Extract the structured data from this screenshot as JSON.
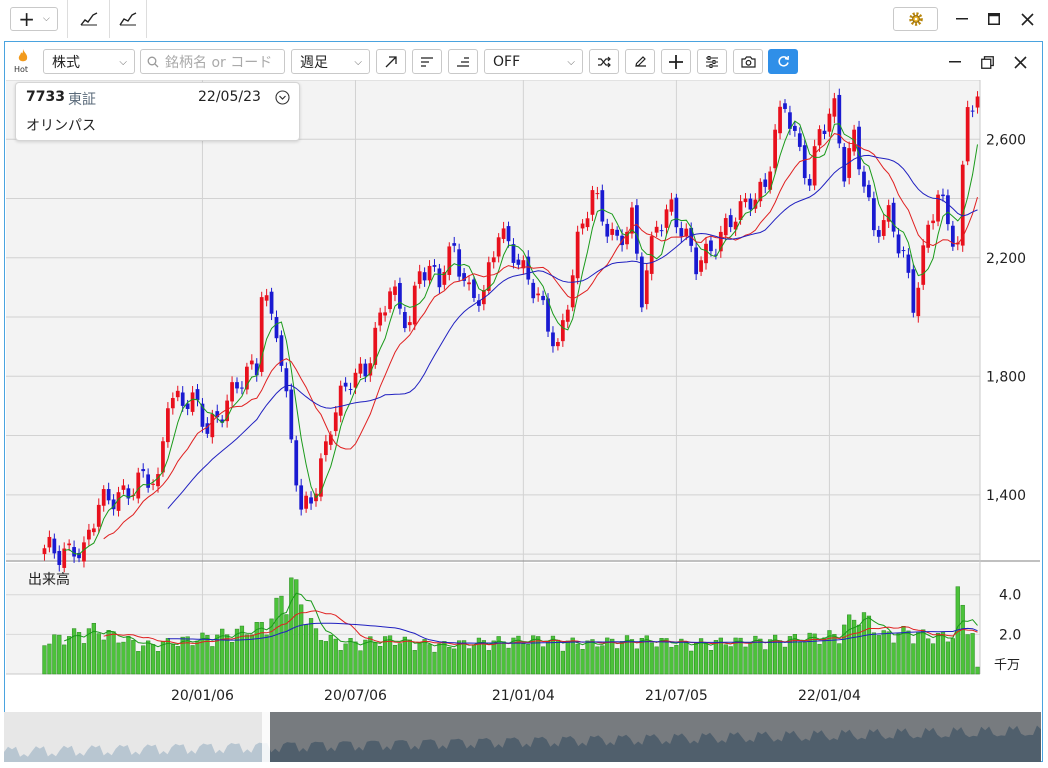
{
  "window": {
    "add_label": "+",
    "tool_icons": [
      "line-chart-icon",
      "line-chart-alt-icon"
    ],
    "settings_icon": "gear-icon"
  },
  "toolbar": {
    "hot_label": "Hot",
    "type_select": "株式",
    "search_placeholder": "銘柄名 or コード",
    "period_select": "週足",
    "indicator_select": "OFF",
    "refresh_color": "#2f8fe8"
  },
  "stock": {
    "code": "7733",
    "market": "東証",
    "date": "22/05/23",
    "name": "オリンパス"
  },
  "volume_panel": {
    "title": "出来高",
    "unit": "千万"
  },
  "chart_data": {
    "type": "candlestick",
    "price_axis": {
      "ticks": [
        1400,
        1800,
        2200,
        2600
      ],
      "labels": [
        "1,400",
        "1,800",
        "2,200",
        "2,600"
      ],
      "range": [
        1180,
        2800
      ]
    },
    "volume_axis": {
      "ticks": [
        2.0,
        4.0
      ],
      "labels": [
        "2.0",
        "4.0"
      ],
      "range": [
        0,
        5.6
      ],
      "unit": "千万"
    },
    "time_axis": [
      "20/01/06",
      "20/07/06",
      "21/01/04",
      "21/07/05",
      "22/01/04"
    ],
    "up_color": "#e8101d",
    "down_color": "#1a1ad1",
    "ma_colors": {
      "short": "#1a9a1a",
      "mid": "#e02020",
      "long": "#2020c0"
    },
    "keypoints": [
      [
        0,
        1200
      ],
      [
        3,
        1195
      ],
      [
        6,
        1240
      ],
      [
        8,
        1210
      ],
      [
        11,
        1350
      ],
      [
        15,
        1415
      ],
      [
        20,
        1440
      ],
      [
        23,
        1430
      ],
      [
        25,
        1750
      ],
      [
        30,
        1700
      ],
      [
        33,
        1620
      ],
      [
        37,
        1730
      ],
      [
        41,
        1790
      ],
      [
        43,
        1830
      ],
      [
        44,
        2100
      ],
      [
        47,
        1980
      ],
      [
        49,
        1700
      ],
      [
        52,
        1320
      ],
      [
        55,
        1450
      ],
      [
        58,
        1640
      ],
      [
        62,
        1780
      ],
      [
        65,
        1840
      ],
      [
        67,
        1950
      ],
      [
        70,
        2080
      ],
      [
        72,
        2010
      ],
      [
        74,
        1990
      ],
      [
        76,
        2190
      ],
      [
        80,
        2110
      ],
      [
        83,
        2230
      ],
      [
        86,
        2100
      ],
      [
        89,
        2060
      ],
      [
        92,
        2280
      ],
      [
        95,
        2240
      ],
      [
        98,
        2130
      ],
      [
        102,
        1960
      ],
      [
        104,
        1900
      ],
      [
        106,
        2080
      ],
      [
        108,
        2250
      ],
      [
        111,
        2400
      ],
      [
        113,
        2340
      ],
      [
        116,
        2270
      ],
      [
        119,
        2320
      ],
      [
        121,
        2050
      ],
      [
        124,
        2330
      ],
      [
        127,
        2380
      ],
      [
        129,
        2280
      ],
      [
        132,
        2170
      ],
      [
        135,
        2250
      ],
      [
        138,
        2300
      ],
      [
        141,
        2340
      ],
      [
        143,
        2400
      ],
      [
        146,
        2460
      ],
      [
        148,
        2620
      ],
      [
        150,
        2700
      ],
      [
        152,
        2590
      ],
      [
        155,
        2480
      ],
      [
        157,
        2640
      ],
      [
        160,
        2680
      ],
      [
        162,
        2480
      ],
      [
        164,
        2620
      ],
      [
        166,
        2480
      ],
      [
        168,
        2280
      ],
      [
        171,
        2320
      ],
      [
        174,
        2220
      ],
      [
        176,
        2060
      ],
      [
        179,
        2280
      ],
      [
        181,
        2400
      ],
      [
        183,
        2320
      ],
      [
        185,
        2260
      ],
      [
        187,
        2740
      ],
      [
        189,
        2700
      ]
    ],
    "volume_keypoints": [
      [
        0,
        1.6
      ],
      [
        10,
        2.2
      ],
      [
        20,
        1.4
      ],
      [
        30,
        1.7
      ],
      [
        40,
        2.1
      ],
      [
        45,
        2.4
      ],
      [
        50,
        4.6
      ],
      [
        55,
        2.0
      ],
      [
        60,
        1.5
      ],
      [
        70,
        1.7
      ],
      [
        80,
        1.4
      ],
      [
        90,
        1.6
      ],
      [
        100,
        1.7
      ],
      [
        110,
        1.5
      ],
      [
        120,
        1.7
      ],
      [
        130,
        1.5
      ],
      [
        140,
        1.6
      ],
      [
        150,
        1.7
      ],
      [
        160,
        1.9
      ],
      [
        165,
        3.0
      ],
      [
        170,
        1.9
      ],
      [
        175,
        2.1
      ],
      [
        180,
        1.8
      ],
      [
        184,
        1.9
      ],
      [
        185,
        3.8
      ],
      [
        188,
        2.0
      ],
      [
        189,
        0.3
      ]
    ]
  }
}
